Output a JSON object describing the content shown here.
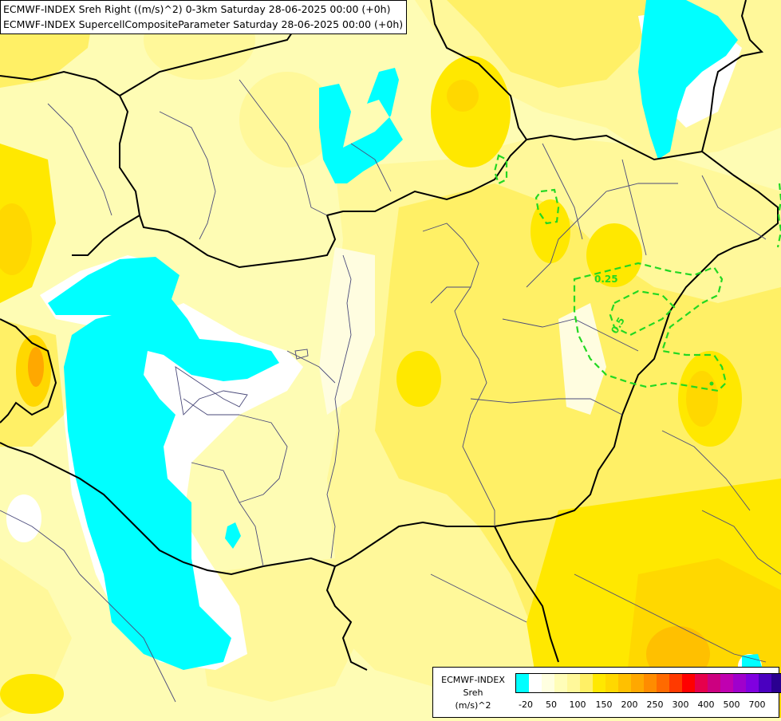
{
  "titles": {
    "line1": "ECMWF-INDEX Sreh Right ((m/s)^2) 0-3km Saturday 28-06-2025 00:00 (+0h)",
    "line2": "ECMWF-INDEX SupercellCompositeParameter Saturday 28-06-2025 00:00 (+0h)"
  },
  "legend": {
    "model": "ECMWF-INDEX",
    "variable": "Sreh",
    "unit": "(m/s)^2",
    "colors": [
      "#00ffff",
      "#ffffff",
      "#ffffe0",
      "#fffdb8",
      "#fff89a",
      "#fff066",
      "#ffe800",
      "#ffd800",
      "#ffc000",
      "#ffa800",
      "#ff8c00",
      "#ff6a00",
      "#ff3a00",
      "#ff0000",
      "#e6004c",
      "#cc0080",
      "#c000b0",
      "#a000cc",
      "#8000e0",
      "#4a00c0",
      "#2a0090",
      "#000070"
    ],
    "ticks": [
      "-20",
      "50",
      "100",
      "150",
      "200",
      "250",
      "300",
      "400",
      "500",
      "700"
    ]
  },
  "contours": {
    "color": "#22d822",
    "labels": [
      "0.25",
      "0.5"
    ]
  }
}
